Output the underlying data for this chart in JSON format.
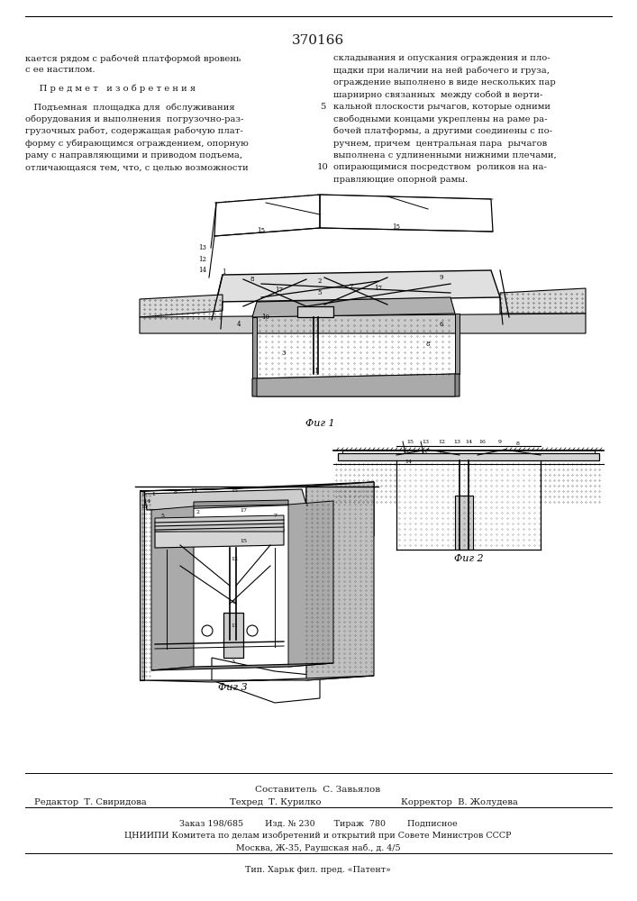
{
  "patent_number": "370166",
  "bg_color": "#ffffff",
  "text_color": "#1a1a1a",
  "page_width": 7.07,
  "page_height": 10.0,
  "title_fontsize": 11,
  "body_fontsize": 7.2,
  "left_col_lines": [
    "кается рядом с рабочей платформой вровень",
    "с ее настилом.",
    "",
    "     П р е д м е т   и з о б р е т е н и я",
    "",
    "   Подъемная  площадка для  обслуживания",
    "оборудования и выполнения  погрузочно-раз-",
    "грузочных работ, содержащая рабочую плат-",
    "форму с убирающимся ограждением, опорную",
    "раму с направляющими и приводом подъема,",
    "отличающаяся тем, что, с целью возможности"
  ],
  "right_col_lines": [
    "складывания и опускания ограждения и пло-",
    "щадки при наличии на ней рабочего и груза,",
    "ограждение выполнено в виде нескольких пар",
    "шарнирно связанных  между собой в верти-",
    "кальной плоскости рычагов, которые одними",
    "свободными концами укреплены на раме ра-",
    "бочей платформы, а другими соединены с по-",
    "ручнем, причем  центральная пара  рычагов",
    "выполнена с удлиненными нижними плечами,",
    "опирающимися посредством  роликов на на-",
    "правляющие опорной рамы."
  ]
}
